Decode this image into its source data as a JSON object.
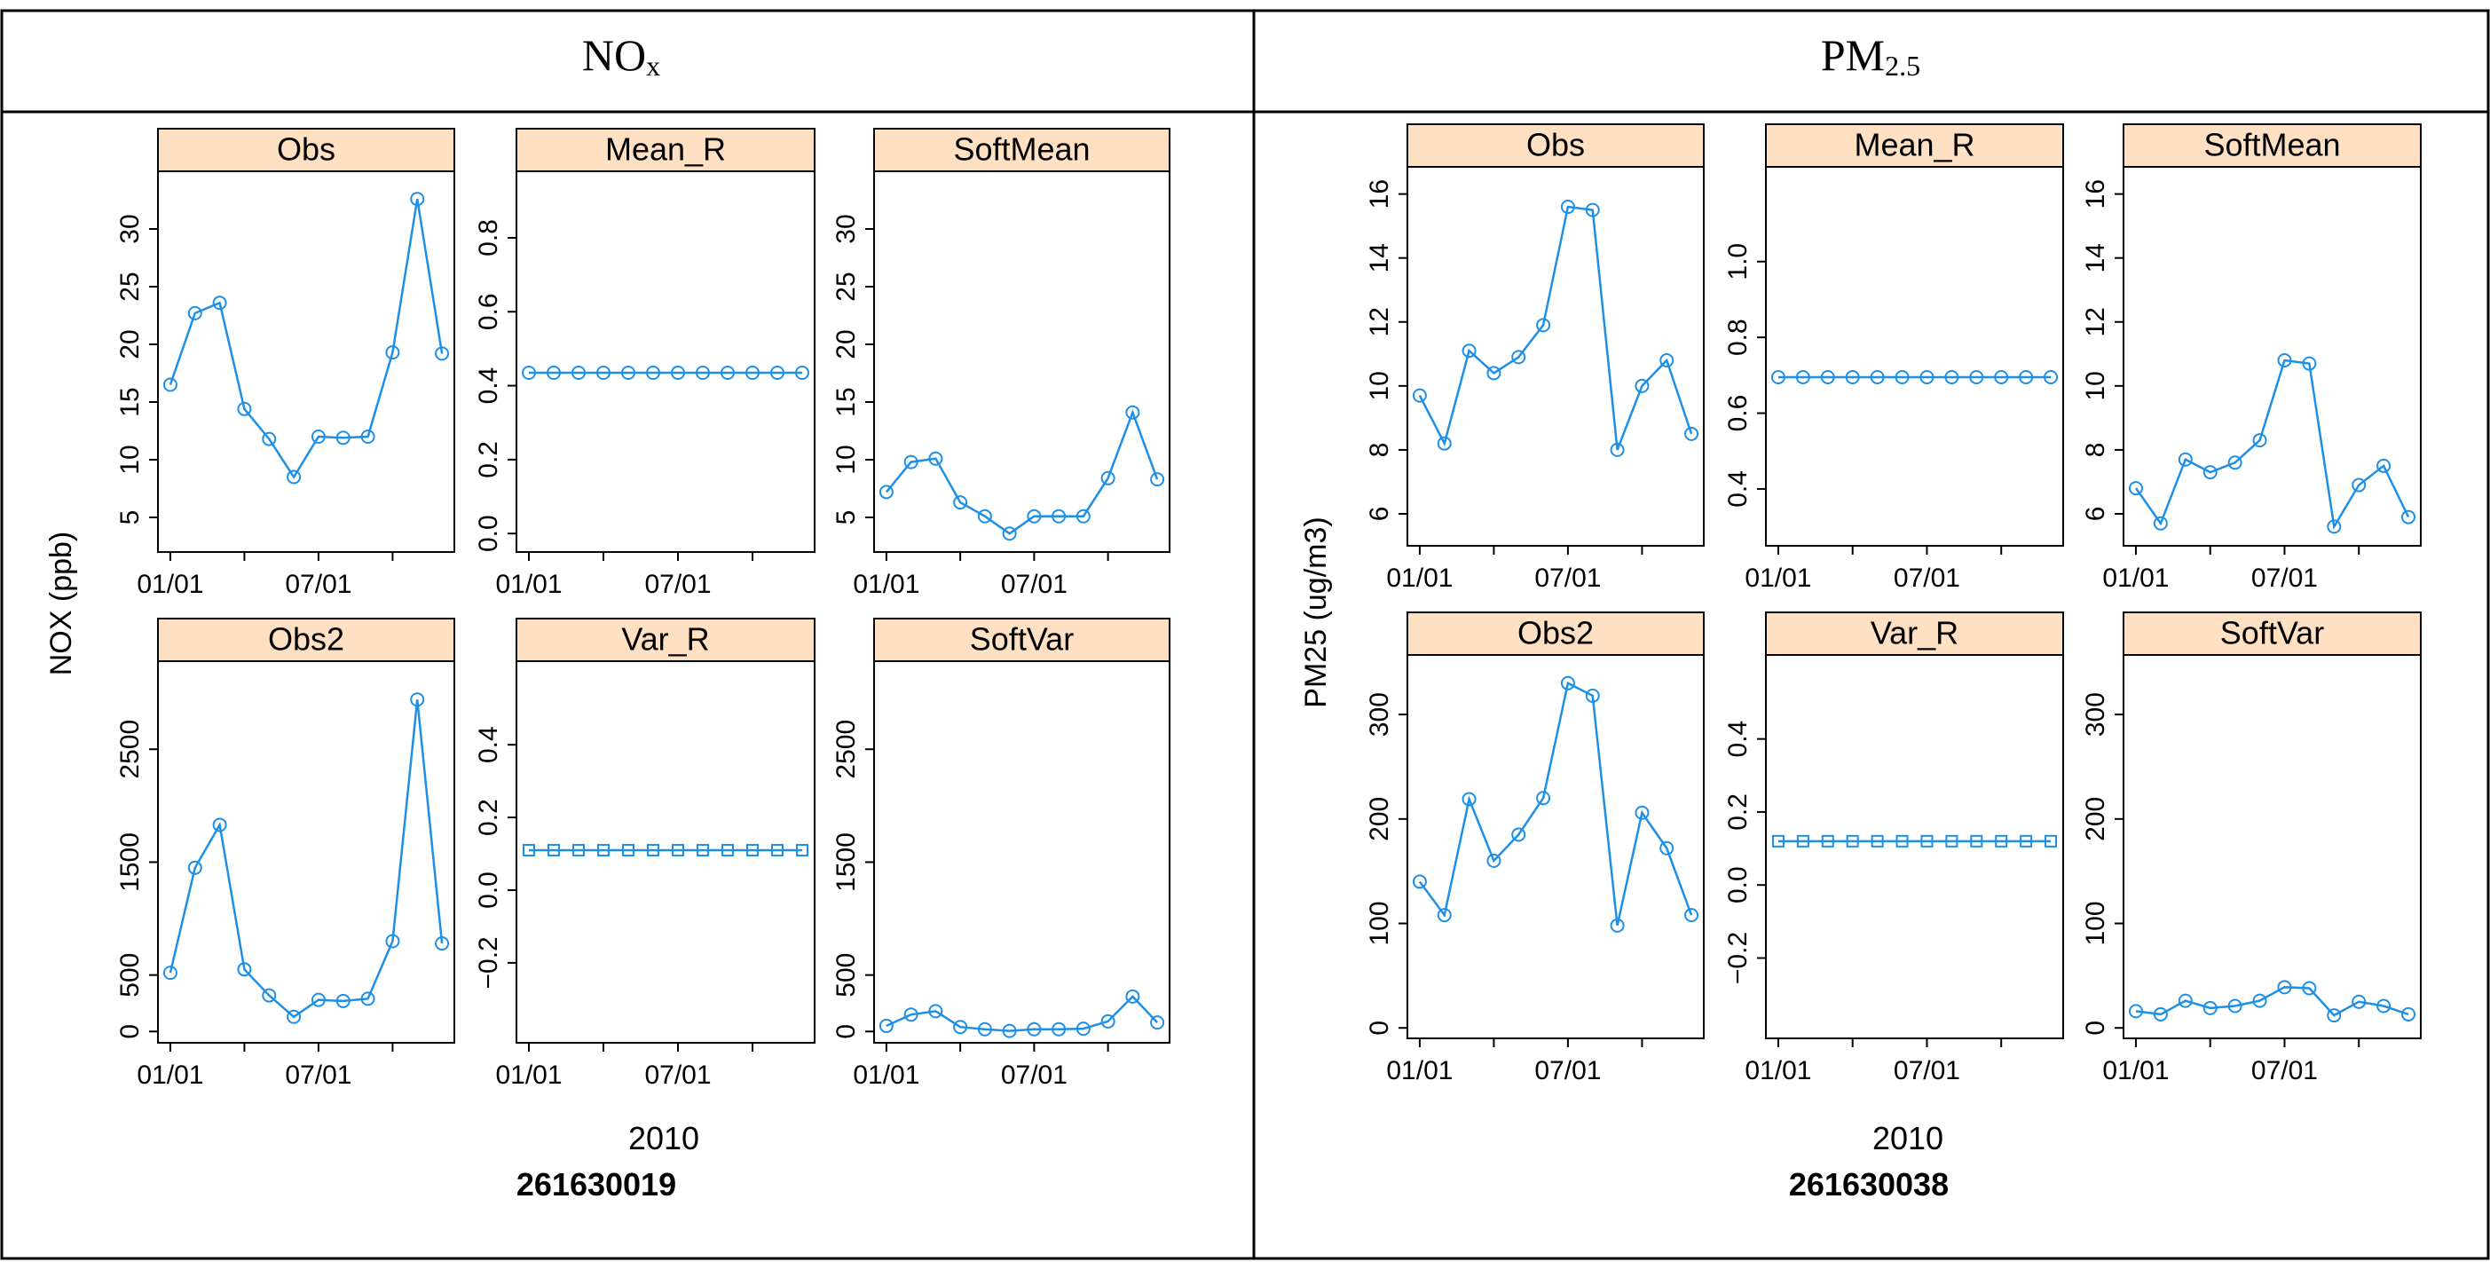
{
  "figure": {
    "colors": {
      "series": "#1e8fe6",
      "strip_fill": "#ffe0c2",
      "frame": "#000000"
    },
    "columns": [
      {
        "title_main": "NO",
        "title_sub": "x",
        "year_label": "2010",
        "site_label": "261630019",
        "ylabel": "NOX (ppb)"
      },
      {
        "title_main": "PM",
        "title_sub": "2.5",
        "year_label": "2010",
        "site_label": "261630038",
        "ylabel": "PM25 (ug/m3)"
      }
    ]
  },
  "chart_data": [
    {
      "site": "261630019",
      "type": "line",
      "x_tick_labels": [
        "01/01",
        "07/01"
      ],
      "x_tick_positions": [
        1,
        7
      ],
      "xlim": [
        0.5,
        12.5
      ],
      "panels": [
        {
          "name": "Obs",
          "values": [
            16.5,
            22.7,
            23.6,
            14.4,
            11.8,
            8.5,
            12.0,
            11.9,
            12.0,
            19.3,
            32.6,
            19.2
          ],
          "ylim": [
            2,
            35
          ],
          "ticks": [
            5,
            10,
            15,
            20,
            25,
            30
          ],
          "tick_labels": [
            "5",
            "10",
            "15",
            "20",
            "25",
            "30"
          ],
          "marker": "circle"
        },
        {
          "name": "Mean_R",
          "values": [
            0.435,
            0.435,
            0.435,
            0.435,
            0.435,
            0.435,
            0.435,
            0.435,
            0.435,
            0.435,
            0.435,
            0.435
          ],
          "ylim": [
            -0.05,
            0.98
          ],
          "ticks": [
            0.0,
            0.2,
            0.4,
            0.6,
            0.8
          ],
          "tick_labels": [
            "0.0",
            "0.2",
            "0.4",
            "0.6",
            "0.8"
          ],
          "marker": "circle"
        },
        {
          "name": "SoftMean",
          "values": [
            7.2,
            9.8,
            10.1,
            6.3,
            5.1,
            3.6,
            5.1,
            5.1,
            5.1,
            8.4,
            14.1,
            8.3
          ],
          "ylim": [
            2,
            35
          ],
          "ticks": [
            5,
            10,
            15,
            20,
            25,
            30
          ],
          "tick_labels": [
            "5",
            "10",
            "15",
            "20",
            "25",
            "30"
          ],
          "marker": "circle"
        },
        {
          "name": "Obs2",
          "values": [
            520,
            1450,
            1830,
            550,
            320,
            130,
            280,
            270,
            290,
            800,
            2940,
            780
          ],
          "ylim": [
            -100,
            3280
          ],
          "ticks": [
            0,
            500,
            1500,
            2500
          ],
          "tick_labels": [
            "0",
            "500",
            "1500",
            "2500"
          ],
          "marker": "circle"
        },
        {
          "name": "Var_R",
          "values": [
            0.11,
            0.11,
            0.11,
            0.11,
            0.11,
            0.11,
            0.11,
            0.11,
            0.11,
            0.11,
            0.11,
            0.11
          ],
          "ylim": [
            -0.42,
            0.63
          ],
          "ticks": [
            -0.2,
            0.0,
            0.2,
            0.4
          ],
          "tick_labels": [
            "−0.2",
            "0.0",
            "0.2",
            "0.4"
          ],
          "marker": "square"
        },
        {
          "name": "SoftVar",
          "values": [
            50,
            150,
            180,
            40,
            20,
            5,
            20,
            20,
            25,
            90,
            310,
            80
          ],
          "ylim": [
            -100,
            3280
          ],
          "ticks": [
            0,
            500,
            1500,
            2500
          ],
          "tick_labels": [
            "0",
            "500",
            "1500",
            "2500"
          ],
          "marker": "circle"
        }
      ]
    },
    {
      "site": "261630038",
      "type": "line",
      "x_tick_labels": [
        "01/01",
        "07/01"
      ],
      "x_tick_positions": [
        1,
        7
      ],
      "xlim": [
        0.5,
        12.5
      ],
      "panels": [
        {
          "name": "Obs",
          "values": [
            9.7,
            8.2,
            11.1,
            10.4,
            10.9,
            11.9,
            15.6,
            15.5,
            8.0,
            10.0,
            10.8,
            8.5
          ],
          "ylim": [
            5.0,
            16.85
          ],
          "ticks": [
            6,
            8,
            10,
            12,
            14,
            16
          ],
          "tick_labels": [
            "6",
            "8",
            "10",
            "12",
            "14",
            "16"
          ],
          "marker": "circle"
        },
        {
          "name": "Mean_R",
          "values": [
            0.695,
            0.695,
            0.695,
            0.695,
            0.695,
            0.695,
            0.695,
            0.695,
            0.695,
            0.695,
            0.695,
            0.695
          ],
          "ylim": [
            0.25,
            1.25
          ],
          "ticks": [
            0.4,
            0.6,
            0.8,
            1.0
          ],
          "tick_labels": [
            "0.4",
            "0.6",
            "0.8",
            "1.0"
          ],
          "marker": "circle"
        },
        {
          "name": "SoftMean",
          "values": [
            6.8,
            5.7,
            7.7,
            7.3,
            7.6,
            8.3,
            10.8,
            10.7,
            5.6,
            6.9,
            7.5,
            5.9
          ],
          "ylim": [
            5.0,
            16.85
          ],
          "ticks": [
            6,
            8,
            10,
            12,
            14,
            16
          ],
          "tick_labels": [
            "6",
            "8",
            "10",
            "12",
            "14",
            "16"
          ],
          "marker": "circle"
        },
        {
          "name": "Obs2",
          "values": [
            140,
            108,
            219,
            160,
            185,
            220,
            330,
            318,
            98,
            206,
            172,
            108
          ],
          "ylim": [
            -10,
            357
          ],
          "ticks": [
            0,
            100,
            200,
            300
          ],
          "tick_labels": [
            "0",
            "100",
            "200",
            "300"
          ],
          "marker": "circle"
        },
        {
          "name": "Var_R",
          "values": [
            0.12,
            0.12,
            0.12,
            0.12,
            0.12,
            0.12,
            0.12,
            0.12,
            0.12,
            0.12,
            0.12,
            0.12
          ],
          "ylim": [
            -0.42,
            0.63
          ],
          "ticks": [
            -0.2,
            0.0,
            0.2,
            0.4
          ],
          "tick_labels": [
            "−0.2",
            "0.0",
            "0.2",
            "0.4"
          ],
          "marker": "square"
        },
        {
          "name": "SoftVar",
          "values": [
            16,
            13,
            26,
            19,
            21,
            26,
            39,
            38,
            12,
            25,
            21,
            13
          ],
          "ylim": [
            -10,
            357
          ],
          "ticks": [
            0,
            100,
            200,
            300
          ],
          "tick_labels": [
            "0",
            "100",
            "200",
            "300"
          ],
          "marker": "circle"
        }
      ]
    }
  ]
}
